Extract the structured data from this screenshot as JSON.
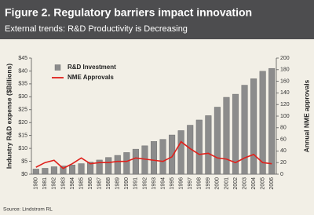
{
  "chart_data": {
    "type": "bar",
    "title": "Figure 2. Regulatory barriers impact innovation",
    "subtitle": "External trends: R&D Productivity is Decreasing",
    "y_label": "Industry R&D expense ($Billions)",
    "y2_label": "Annual NME approvals",
    "source": "Source: Lindstrom RL",
    "categories": [
      "1980",
      "1981",
      "1982",
      "1983",
      "1984",
      "1985",
      "1986",
      "1987",
      "1988",
      "1989",
      "1990",
      "1991",
      "1992",
      "1993",
      "1994",
      "1995",
      "1996",
      "1997",
      "1998",
      "1999",
      "2000",
      "2001",
      "2002",
      "2003",
      "2004",
      "2005",
      "2006"
    ],
    "series": [
      {
        "name": "R&D Investment",
        "type": "bar",
        "color": "#8c8c8c",
        "values": [
          2.0,
          2.3,
          2.9,
          3.2,
          3.6,
          4.1,
          4.7,
          5.5,
          6.5,
          7.3,
          8.4,
          9.7,
          11.0,
          12.7,
          13.5,
          15.2,
          16.9,
          19.0,
          21.0,
          22.7,
          26.0,
          29.8,
          31.0,
          34.5,
          37.0,
          39.9,
          41.0
        ]
      },
      {
        "name": "NME Approvals",
        "type": "line",
        "color": "#e0201b",
        "axis": "y2",
        "values": [
          12,
          20,
          24,
          10,
          18,
          28,
          18,
          20,
          20,
          22,
          22,
          28,
          26,
          24,
          22,
          30,
          56,
          44,
          34,
          36,
          28,
          26,
          20,
          28,
          34,
          20,
          18
        ]
      }
    ],
    "ylim": [
      0,
      45
    ],
    "yticks": [
      {
        "value": 0,
        "label": "$0"
      },
      {
        "value": 5,
        "label": "$5"
      },
      {
        "value": 10,
        "label": "$10"
      },
      {
        "value": 15,
        "label": "$15"
      },
      {
        "value": 20,
        "label": "$20"
      },
      {
        "value": 25,
        "label": "$25"
      },
      {
        "value": 30,
        "label": "$30"
      },
      {
        "value": 35,
        "label": "$35"
      },
      {
        "value": 40,
        "label": "$40"
      },
      {
        "value": 45,
        "label": "$45"
      }
    ],
    "y2lim": [
      0,
      200
    ],
    "y2ticks": [
      0,
      20,
      40,
      60,
      80,
      100,
      120,
      140,
      160,
      180,
      200
    ],
    "legend": "upper-left"
  }
}
